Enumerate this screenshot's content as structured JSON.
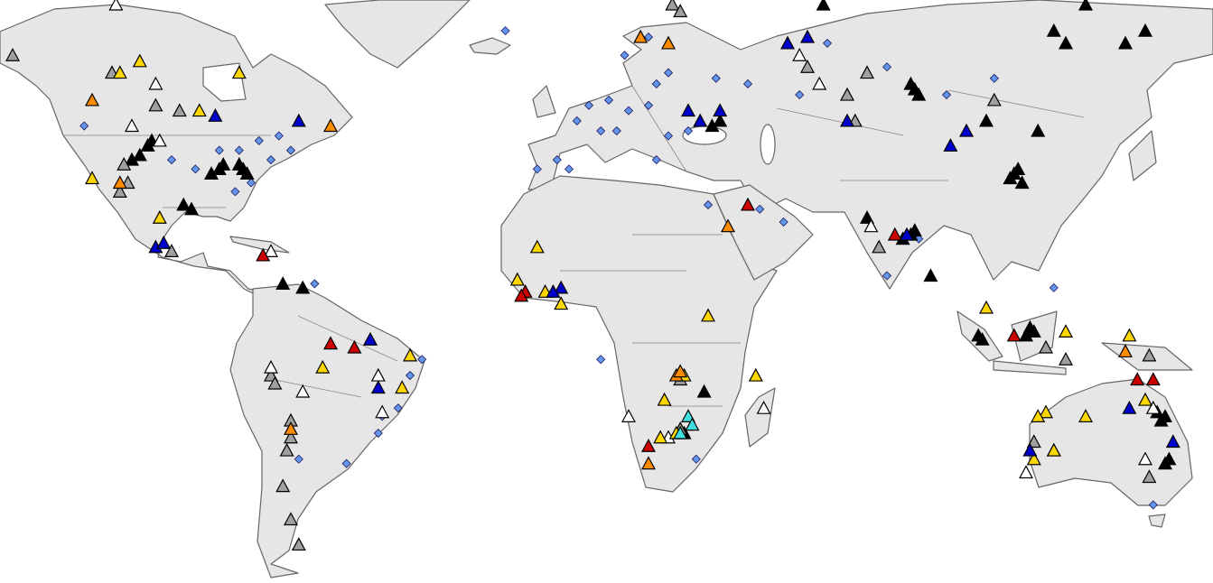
{
  "map_data": {
    "type": "point-map",
    "groups": [
      {
        "color": "#000000",
        "symbol": "triangle",
        "lon": [
          -82,
          -81,
          -83,
          -87,
          -88,
          -90,
          -106,
          -108,
          -110,
          -105,
          -97,
          -95,
          -67,
          125,
          122,
          130,
          140,
          145,
          64,
          87,
          86,
          88,
          105,
          112,
          113,
          111,
          114,
          86,
          84,
          87,
          75,
          91,
          116,
          117,
          115,
          104,
          103,
          149,
          150,
          148,
          151,
          150,
          38,
          36,
          34,
          29,
          118,
          -72
        ],
        "lat": [
          38,
          37,
          39,
          39,
          38,
          37,
          43,
          41,
          40,
          44,
          30,
          29,
          10,
          62,
          64,
          68,
          62,
          64,
          68,
          54,
          55,
          53,
          48,
          37,
          38,
          36,
          35,
          23,
          22,
          24,
          27,
          13,
          0,
          -1,
          -2,
          -3,
          -2,
          -23,
          -22,
          -21,
          -32,
          -33,
          48,
          47,
          -16,
          -26,
          46,
          11
        ]
      },
      {
        "color": "#a0a0a0",
        "symbol": "triangle",
        "lon": [
          -140,
          -115,
          -104,
          -98,
          -112,
          -111,
          -113,
          -100,
          -70,
          -70,
          -71,
          -72,
          -70,
          -75,
          -74,
          -68,
          60,
          70,
          75,
          107,
          125,
          120,
          146,
          146,
          122,
          117,
          28,
          28,
          72,
          26,
          28,
          78
        ],
        "lat": [
          60,
          57,
          51,
          50,
          39,
          35,
          33,
          19,
          -23,
          -27,
          -30,
          -38,
          -45,
          -12,
          -14,
          -50,
          58,
          53,
          57,
          52,
          -8,
          -5,
          -7,
          -36,
          -30,
          -28,
          -13,
          -25,
          48,
          68,
          67,
          20
        ]
      },
      {
        "color": "#ffffff",
        "symbol": "triangle",
        "lon": [
          -114,
          -104,
          -103,
          -110,
          -75,
          -67,
          -48,
          15,
          -47,
          25,
          76,
          63,
          145,
          147,
          115,
          58,
          -75,
          49
        ],
        "lat": [
          68,
          55,
          44,
          47,
          -10,
          -16,
          -12,
          -22,
          -21,
          -27,
          25,
          55,
          -32,
          -20,
          -35,
          60,
          19,
          -20
        ]
      },
      {
        "color": "#ffd700",
        "symbol": "triangle",
        "lon": [
          -113,
          -108,
          -93,
          -83,
          -120,
          -103,
          -62,
          -40,
          -42,
          -8,
          -13,
          -6,
          29,
          23,
          27,
          122,
          120,
          130,
          145,
          117,
          105,
          125,
          118,
          141,
          -50,
          35,
          47,
          -2,
          24
        ],
        "lat": [
          57,
          59,
          50,
          57,
          36,
          27,
          -10,
          -7,
          -15,
          20,
          12,
          9,
          -12,
          -27,
          -26,
          -30,
          -21,
          -22,
          -18,
          -32,
          5,
          -1,
          -22,
          -2,
          -3,
          3,
          -12,
          6,
          -18
        ]
      },
      {
        "color": "#ff8c00",
        "symbol": "triangle",
        "lon": [
          -120,
          -113,
          -60,
          27,
          28,
          18,
          25,
          40,
          -70,
          140,
          20
        ],
        "lat": [
          52,
          35,
          47,
          -12,
          -11,
          63,
          62,
          25,
          -25,
          -6,
          -33
        ]
      },
      {
        "color": "#cc0000",
        "symbol": "triangle",
        "lon": [
          -77,
          -60,
          -54,
          -11,
          -12,
          45,
          82,
          112,
          143,
          147,
          20
        ],
        "lat": [
          18,
          -4,
          -5,
          9,
          8,
          30,
          23,
          -2,
          -13,
          -13,
          -29
        ]
      },
      {
        "color": "#0000cc",
        "symbol": "triangle",
        "lon": [
          -104,
          -102,
          -89,
          -68,
          -50,
          -48,
          -2,
          -4,
          55,
          30,
          33,
          38,
          60,
          70,
          85,
          96,
          100,
          116,
          141,
          152
        ],
        "lat": [
          20,
          21,
          49,
          48,
          -3,
          -15,
          10,
          9,
          62,
          50,
          48,
          50,
          63,
          48,
          23,
          43,
          46,
          -30,
          -20,
          -28
        ]
      },
      {
        "color": "#40e0e0",
        "symbol": "triangle",
        "lon": [
          30,
          28,
          31
        ],
        "lat": [
          -22,
          -26,
          -24
        ]
      },
      {
        "color": "#6495ed",
        "symbol": "diamond",
        "lon": [
          2,
          5,
          10,
          15,
          20,
          12,
          -3,
          0,
          -8,
          8,
          25,
          25,
          22,
          30,
          14,
          20,
          22,
          37,
          45,
          -70,
          -75,
          -80,
          -84,
          -88,
          -83,
          -78,
          -73,
          -94,
          -100,
          -122,
          -47,
          -43,
          -40,
          -37,
          -64,
          -56,
          -48,
          -68,
          54,
          48,
          35,
          58,
          80,
          95,
          65,
          107,
          80,
          88,
          122,
          147,
          8,
          32,
          -16
        ],
        "lat": [
          48,
          51,
          52,
          50,
          51,
          46,
          40,
          38,
          38,
          46,
          57,
          45,
          40,
          46,
          60,
          63,
          55,
          56,
          55,
          42,
          40,
          35,
          33,
          42,
          42,
          44,
          45,
          38,
          40,
          47,
          -22,
          -20,
          -12,
          -8,
          11,
          -33,
          -26,
          -32,
          26,
          29,
          30,
          53,
          58,
          53,
          62,
          56,
          13,
          22,
          10,
          -42,
          -8,
          -32,
          64
        ]
      }
    ]
  }
}
